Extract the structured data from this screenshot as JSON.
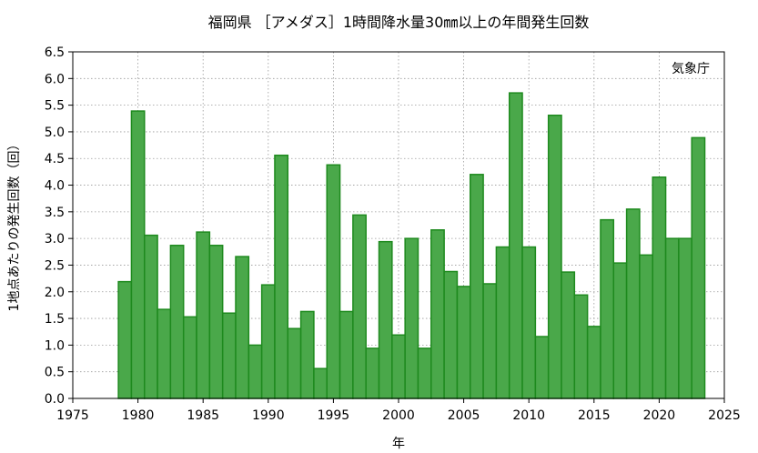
{
  "chart_data": {
    "type": "bar",
    "title": "福岡県 ［アメダス］1時間降水量30㎜以上の年間発生回数",
    "xlabel": "年",
    "ylabel": "1地点あたりの発生回数（回）",
    "source_note": "気象庁",
    "xlim": [
      1975,
      2025
    ],
    "ylim": [
      0,
      6.5
    ],
    "x_ticks": [
      1975,
      1980,
      1985,
      1990,
      1995,
      2000,
      2005,
      2010,
      2015,
      2020,
      2025
    ],
    "y_ticks": [
      "0.0",
      "0.5",
      "1.0",
      "1.5",
      "2.0",
      "2.5",
      "3.0",
      "3.5",
      "4.0",
      "4.5",
      "5.0",
      "5.5",
      "6.0",
      "6.5"
    ],
    "grid": true,
    "bar_color": "#4aa84a",
    "bar_edge_color": "#1e8a1e",
    "categories": [
      1979,
      1980,
      1981,
      1982,
      1983,
      1984,
      1985,
      1986,
      1987,
      1988,
      1989,
      1990,
      1991,
      1992,
      1993,
      1994,
      1995,
      1996,
      1997,
      1998,
      1999,
      2000,
      2001,
      2002,
      2003,
      2004,
      2005,
      2006,
      2007,
      2008,
      2009,
      2010,
      2011,
      2012,
      2013,
      2014,
      2015,
      2016,
      2017,
      2018,
      2019,
      2020,
      2021,
      2022,
      2023
    ],
    "values": [
      2.19,
      5.39,
      3.06,
      1.67,
      2.87,
      1.53,
      3.12,
      2.87,
      1.6,
      2.66,
      1.0,
      2.13,
      4.56,
      1.31,
      1.63,
      0.56,
      4.38,
      1.63,
      3.44,
      0.94,
      2.94,
      1.19,
      3.0,
      0.94,
      3.16,
      2.38,
      2.1,
      4.2,
      2.15,
      2.84,
      5.73,
      2.84,
      1.16,
      5.31,
      2.37,
      1.94,
      1.35,
      3.35,
      2.54,
      3.55,
      2.69,
      4.15,
      3.0,
      3.0,
      4.89
    ]
  }
}
